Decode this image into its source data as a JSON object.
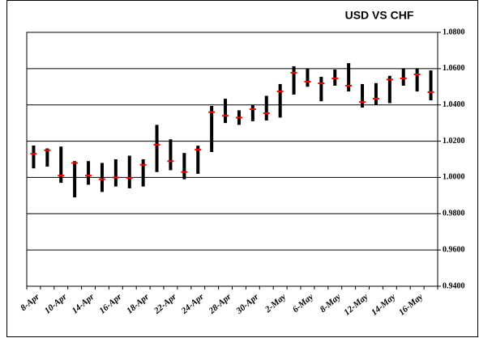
{
  "chart_data": {
    "type": "hlc",
    "title": "USD VS CHF",
    "categories": [
      "8-Apr",
      null,
      "10-Apr",
      null,
      "14-Apr",
      null,
      "16-Apr",
      null,
      "18-Apr",
      null,
      "22-Apr",
      null,
      "24-Apr",
      null,
      "28-Apr",
      null,
      "30-Apr",
      null,
      "2-May",
      null,
      "6-May",
      null,
      "8-May",
      null,
      "12-May",
      null,
      "14-May",
      null,
      "16-May",
      null
    ],
    "high": [
      1.0176,
      1.016,
      1.017,
      1.009,
      1.009,
      1.008,
      1.01,
      1.012,
      1.01,
      1.029,
      1.021,
      1.0135,
      1.0175,
      1.0394,
      1.0434,
      1.037,
      1.04,
      1.045,
      1.0515,
      1.0613,
      1.06,
      1.0555,
      1.0595,
      1.063,
      1.0515,
      1.052,
      1.056,
      1.06,
      1.06,
      1.059
    ],
    "low": [
      1.005,
      1.006,
      0.997,
      0.989,
      0.996,
      0.992,
      0.995,
      0.994,
      0.995,
      1.003,
      1.004,
      0.999,
      1.002,
      1.014,
      1.03,
      1.029,
      1.031,
      1.0314,
      1.033,
      1.0457,
      1.05,
      1.042,
      1.0506,
      1.0474,
      1.0385,
      1.04,
      1.041,
      1.0506,
      1.0474,
      1.0425
    ],
    "close": [
      1.013,
      1.015,
      1.001,
      1.008,
      1.001,
      0.999,
      1.0,
      0.9997,
      1.007,
      1.018,
      1.009,
      1.003,
      1.0153,
      1.036,
      1.034,
      1.033,
      1.0376,
      1.0354,
      1.0474,
      1.0577,
      1.0528,
      1.0519,
      1.0546,
      1.0506,
      1.0416,
      1.0434,
      1.054,
      1.0546,
      1.0568,
      1.047
    ],
    "color": "#000000",
    "close_color": "#ff0000",
    "ylim": [
      0.94,
      1.08
    ],
    "yticks": [
      {
        "value": 0.94,
        "label": "0.9400"
      },
      {
        "value": 0.96,
        "label": "0.9600"
      },
      {
        "value": 0.98,
        "label": "0.9800"
      },
      {
        "value": 1.0,
        "label": "1.0000"
      },
      {
        "value": 1.02,
        "label": "1.0200"
      },
      {
        "value": 1.04,
        "label": "1.0400"
      },
      {
        "value": 1.06,
        "label": "1.0600"
      },
      {
        "value": 1.08,
        "label": "1.0800"
      }
    ],
    "grid": true
  }
}
